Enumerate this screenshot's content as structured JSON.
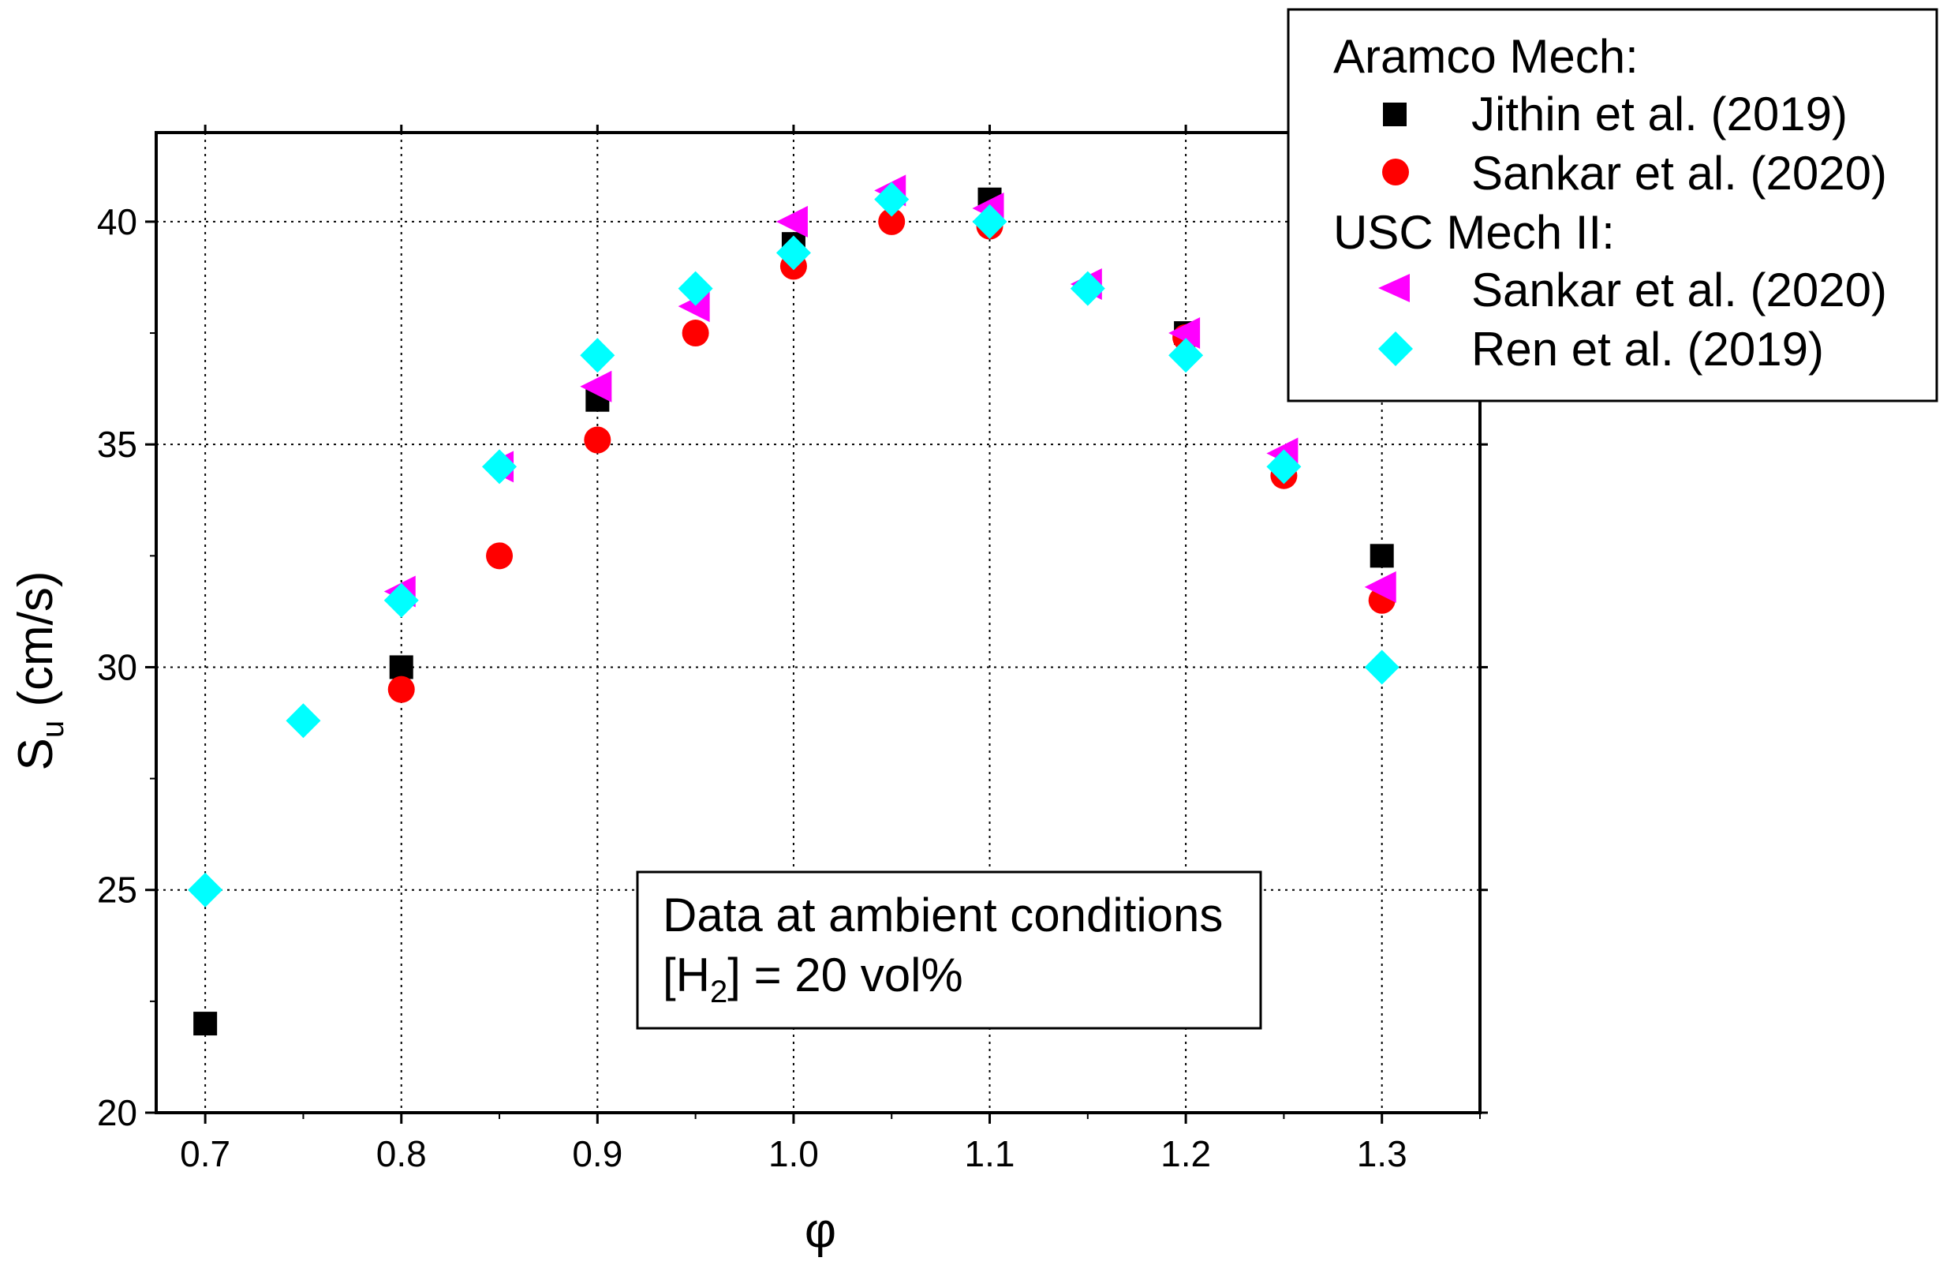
{
  "chart_data": {
    "type": "scatter",
    "title": "",
    "xlabel": "φ",
    "ylabel_main": "S",
    "ylabel_sub": "u",
    "ylabel_unit": " (cm/s)",
    "xlim": [
      0.675,
      1.35
    ],
    "ylim": [
      20,
      42
    ],
    "xticks": [
      0.7,
      0.8,
      0.9,
      1.0,
      1.1,
      1.2,
      1.3
    ],
    "xtick_labels": [
      "0.7",
      "0.8",
      "0.9",
      "1.0",
      "1.1",
      "1.2",
      "1.3"
    ],
    "yticks": [
      20,
      25,
      30,
      35,
      40
    ],
    "ytick_labels": [
      "20",
      "25",
      "30",
      "35",
      "40"
    ],
    "grid": true,
    "legend_groups": [
      {
        "header": "Aramco Mech:",
        "series_index": [
          0,
          1
        ]
      },
      {
        "header": "USC Mech II:",
        "series_index": [
          2,
          3
        ]
      }
    ],
    "series": [
      {
        "name": "Jithin et al. (2019)",
        "marker": "square",
        "color": "#000000",
        "x": [
          0.7,
          0.8,
          0.9,
          1.0,
          1.1,
          1.2,
          1.3
        ],
        "y": [
          22.0,
          30.0,
          36.0,
          39.5,
          40.5,
          37.5,
          32.5
        ]
      },
      {
        "name": "Sankar et al. (2020)",
        "marker": "circle",
        "color": "#ff0000",
        "x": [
          0.8,
          0.85,
          0.9,
          0.95,
          1.0,
          1.05,
          1.1,
          1.2,
          1.25,
          1.3
        ],
        "y": [
          29.5,
          32.5,
          35.1,
          37.5,
          39.0,
          40.0,
          39.9,
          37.4,
          34.3,
          31.5
        ]
      },
      {
        "name": "Sankar et al. (2020)",
        "marker": "triangle-left",
        "color": "#ff00ff",
        "x": [
          0.8,
          0.85,
          0.9,
          0.95,
          1.0,
          1.05,
          1.1,
          1.15,
          1.2,
          1.25,
          1.3
        ],
        "y": [
          31.7,
          34.5,
          36.3,
          38.1,
          40.0,
          40.7,
          40.3,
          38.6,
          37.5,
          34.8,
          31.8
        ]
      },
      {
        "name": "Ren et al. (2019)",
        "marker": "diamond",
        "color": "#00ffff",
        "x": [
          0.7,
          0.75,
          0.8,
          0.85,
          0.9,
          0.95,
          1.0,
          1.05,
          1.1,
          1.15,
          1.2,
          1.25,
          1.3
        ],
        "y": [
          25.0,
          28.8,
          31.5,
          34.5,
          37.0,
          38.5,
          39.3,
          40.5,
          40.0,
          38.5,
          37.0,
          34.5,
          30.0
        ]
      }
    ],
    "annotation": {
      "line1": "Data at ambient conditions",
      "line2_prefix": "[H",
      "line2_sub": "2",
      "line2_suffix": "] = 20 vol%"
    }
  }
}
